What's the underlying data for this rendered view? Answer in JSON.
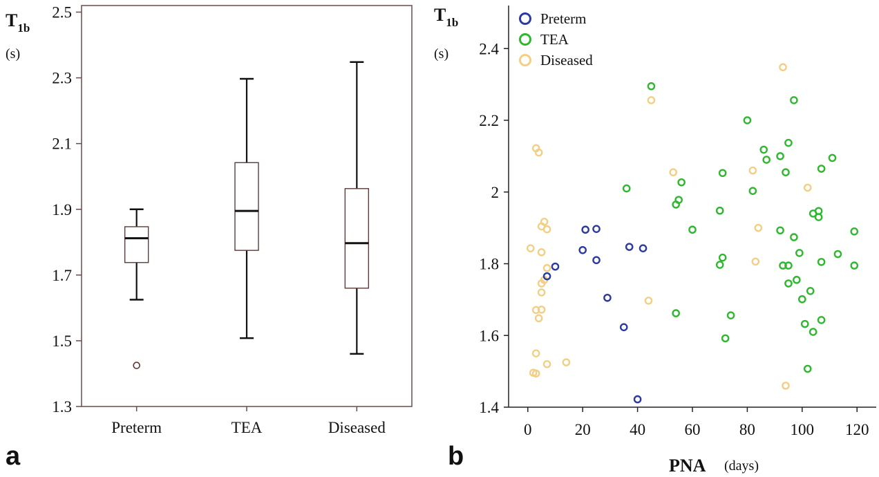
{
  "panels": [
    {
      "letter": "a"
    },
    {
      "letter": "b"
    }
  ],
  "chart_data": [
    {
      "type": "box",
      "ylabel_main": "T",
      "ylabel_sub": "1b",
      "ylabel_unit": "(s)",
      "ylim": [
        1.3,
        2.52
      ],
      "yticks": [
        1.3,
        1.5,
        1.7,
        1.9,
        2.1,
        2.3,
        2.5
      ],
      "ytick_labels": [
        "1.3",
        "1.5",
        "1.7",
        "1.9",
        "2.1",
        "2.3",
        "2.5"
      ],
      "categories": [
        "Preterm",
        "TEA",
        "Diseased"
      ],
      "boxes": [
        {
          "name": "Preterm",
          "whisker_low": 1.625,
          "q1": 1.738,
          "median": 1.812,
          "q3": 1.847,
          "whisker_high": 1.9,
          "outliers": [
            1.425
          ]
        },
        {
          "name": "TEA",
          "whisker_low": 1.508,
          "q1": 1.775,
          "median": 1.895,
          "q3": 2.042,
          "whisker_high": 2.297,
          "outliers": []
        },
        {
          "name": "Diseased",
          "whisker_low": 1.46,
          "q1": 1.66,
          "median": 1.797,
          "q3": 1.963,
          "whisker_high": 2.348,
          "outliers": []
        }
      ],
      "grid": false
    },
    {
      "type": "scatter",
      "ylabel_main": "T",
      "ylabel_sub": "1b",
      "ylabel_unit": "(s)",
      "xlabel": "PNA",
      "xlabel_unit": "(days)",
      "xlim": [
        -7,
        127
      ],
      "ylim": [
        1.4,
        2.52
      ],
      "xticks": [
        0,
        20,
        40,
        60,
        80,
        100,
        120
      ],
      "xtick_labels": [
        "0",
        "20",
        "40",
        "60",
        "80",
        "100",
        "120"
      ],
      "yticks": [
        1.4,
        1.6,
        1.8,
        2.0,
        2.2,
        2.4
      ],
      "ytick_labels": [
        "1.4",
        "1.6",
        "1.8",
        "2",
        "2.2",
        "2.4"
      ],
      "legend_position": "top-left",
      "grid": false,
      "series": [
        {
          "name": "Preterm",
          "color": "#2a3aa0",
          "points": [
            [
              7,
              1.765
            ],
            [
              10,
              1.792
            ],
            [
              20,
              1.838
            ],
            [
              21,
              1.895
            ],
            [
              25,
              1.897
            ],
            [
              25,
              1.81
            ],
            [
              29,
              1.705
            ],
            [
              35,
              1.623
            ],
            [
              37,
              1.847
            ],
            [
              40,
              1.422
            ],
            [
              42,
              1.843
            ]
          ]
        },
        {
          "name": "TEA",
          "color": "#2eb82e",
          "points": [
            [
              36,
              2.01
            ],
            [
              45,
              2.295
            ],
            [
              54,
              1.965
            ],
            [
              55,
              1.978
            ],
            [
              56,
              2.027
            ],
            [
              54,
              1.662
            ],
            [
              60,
              1.895
            ],
            [
              70,
              1.948
            ],
            [
              70,
              1.797
            ],
            [
              71,
              2.053
            ],
            [
              71,
              1.817
            ],
            [
              72,
              1.592
            ],
            [
              74,
              1.656
            ],
            [
              80,
              2.2
            ],
            [
              82,
              2.003
            ],
            [
              86,
              2.118
            ],
            [
              87,
              2.09
            ],
            [
              92,
              2.1
            ],
            [
              92,
              1.893
            ],
            [
              93,
              1.795
            ],
            [
              94,
              2.055
            ],
            [
              95,
              2.137
            ],
            [
              95,
              1.795
            ],
            [
              95,
              1.745
            ],
            [
              97,
              2.256
            ],
            [
              97,
              1.874
            ],
            [
              98,
              1.755
            ],
            [
              99,
              1.83
            ],
            [
              100,
              1.701
            ],
            [
              101,
              1.632
            ],
            [
              102,
              1.507
            ],
            [
              103,
              1.724
            ],
            [
              104,
              1.94
            ],
            [
              104,
              1.61
            ],
            [
              106,
              1.947
            ],
            [
              106,
              1.93
            ],
            [
              107,
              2.065
            ],
            [
              107,
              1.805
            ],
            [
              107,
              1.643
            ],
            [
              111,
              2.095
            ],
            [
              113,
              1.827
            ],
            [
              119,
              1.89
            ],
            [
              119,
              1.795
            ]
          ]
        },
        {
          "name": "Diseased",
          "color": "#f2cf84",
          "points": [
            [
              1,
              1.843
            ],
            [
              2,
              1.496
            ],
            [
              3,
              2.122
            ],
            [
              3,
              1.494
            ],
            [
              3,
              1.671
            ],
            [
              3,
              1.55
            ],
            [
              4,
              2.11
            ],
            [
              4,
              1.648
            ],
            [
              5,
              1.904
            ],
            [
              5,
              1.832
            ],
            [
              5,
              1.745
            ],
            [
              5,
              1.72
            ],
            [
              5,
              1.672
            ],
            [
              6,
              1.917
            ],
            [
              6,
              1.755
            ],
            [
              7,
              1.896
            ],
            [
              7,
              1.788
            ],
            [
              7,
              1.52
            ],
            [
              14,
              1.525
            ],
            [
              44,
              1.697
            ],
            [
              45,
              2.256
            ],
            [
              53,
              2.055
            ],
            [
              82,
              2.06
            ],
            [
              83,
              1.806
            ],
            [
              84,
              1.9
            ],
            [
              93,
              2.348
            ],
            [
              94,
              1.46
            ],
            [
              102,
              2.012
            ]
          ]
        }
      ]
    }
  ]
}
